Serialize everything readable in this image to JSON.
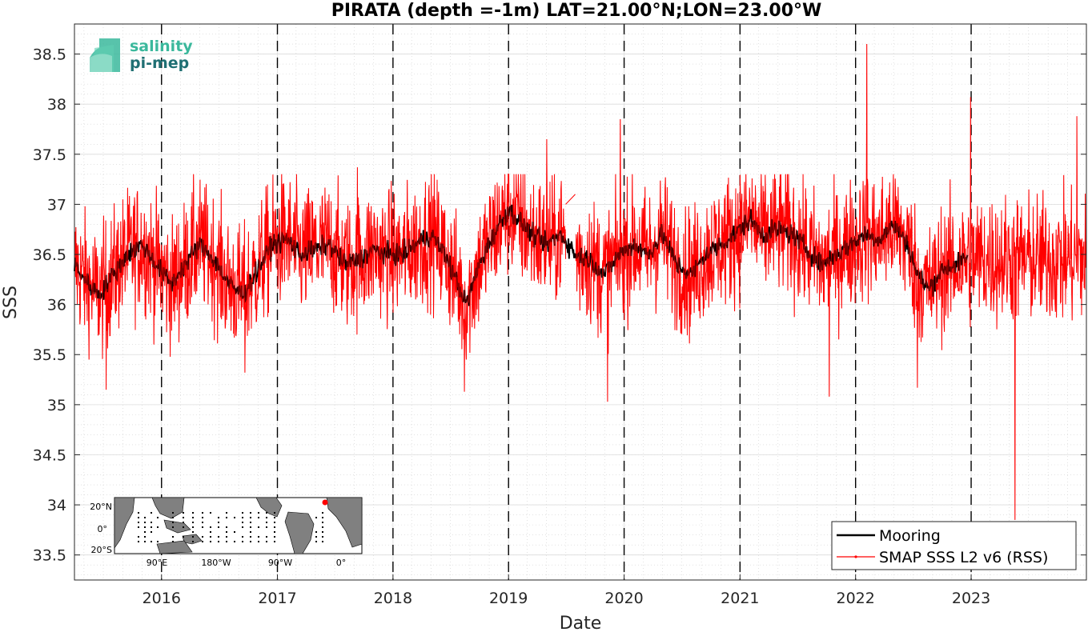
{
  "chart_data": {
    "type": "line",
    "title": "PIRATA (depth =-1m) LAT=21.00°N;LON=23.00°W",
    "xlabel": "Date",
    "ylabel": "SSS",
    "xlim": [
      "2015-04-01",
      "2023-12-31"
    ],
    "ylim": [
      33.25,
      38.8
    ],
    "x_ticks": [
      "2016",
      "2017",
      "2018",
      "2019",
      "2020",
      "2021",
      "2022",
      "2023"
    ],
    "y_ticks": [
      "33.5",
      "34",
      "34.5",
      "35",
      "35.5",
      "36",
      "36.5",
      "37",
      "37.5",
      "38",
      "38.5"
    ],
    "vertical_dashed_lines": [
      "2016-01-01",
      "2017-01-01",
      "2018-01-01",
      "2019-01-01",
      "2020-01-01",
      "2021-01-01",
      "2022-01-01",
      "2023-01-01"
    ],
    "grid": true,
    "legend_position": "bottom-right",
    "series": [
      {
        "name": "Mooring",
        "color": "#000000",
        "points": [
          [
            "2015-04-01",
            36.4
          ],
          [
            "2015-05-15",
            36.2
          ],
          [
            "2015-06-20",
            36.1
          ],
          [
            "2015-08-01",
            36.3
          ],
          [
            "2015-09-15",
            36.5
          ],
          [
            "2015-11-01",
            36.6
          ],
          [
            "2015-12-15",
            36.4
          ],
          [
            "2016-02-01",
            36.2
          ],
          [
            "2016-03-15",
            36.4
          ],
          [
            "2016-05-01",
            36.6
          ],
          [
            "2016-06-15",
            36.45
          ],
          [
            "2016-08-01",
            36.2
          ],
          [
            "2016-09-15",
            36.1
          ],
          [
            "2016-11-01",
            36.35
          ],
          [
            "2016-12-15",
            36.6
          ],
          [
            "2017-02-01",
            36.65
          ],
          [
            "2017-03-15",
            36.5
          ],
          [
            "2017-05-01",
            36.55
          ],
          [
            "2017-06-15",
            36.6
          ],
          [
            "2017-08-01",
            36.4
          ],
          [
            "2017-09-15",
            36.45
          ],
          [
            "2017-11-01",
            36.55
          ],
          [
            "2017-12-15",
            36.5
          ],
          [
            "2018-02-01",
            36.5
          ],
          [
            "2018-03-15",
            36.6
          ],
          [
            "2018-05-01",
            36.7
          ],
          [
            "2018-06-15",
            36.5
          ],
          [
            "2018-08-01",
            36.15
          ],
          [
            "2018-08-20",
            36.0
          ],
          [
            "2018-10-01",
            36.4
          ],
          [
            "2018-11-15",
            36.7
          ],
          [
            "2019-01-01",
            36.95
          ],
          [
            "2019-02-01",
            36.85
          ],
          [
            "2019-03-15",
            36.7
          ],
          [
            "2019-05-01",
            36.6
          ],
          [
            "2019-06-15",
            36.7
          ],
          [
            "2019-08-01",
            36.5
          ],
          [
            "2019-09-15",
            36.45
          ],
          [
            "2019-11-01",
            36.3
          ],
          [
            "2019-12-15",
            36.5
          ],
          [
            "2020-02-01",
            36.6
          ],
          [
            "2020-03-15",
            36.5
          ],
          [
            "2020-05-01",
            36.7
          ],
          [
            "2020-06-15",
            36.4
          ],
          [
            "2020-08-01",
            36.3
          ],
          [
            "2020-09-15",
            36.5
          ],
          [
            "2020-11-01",
            36.6
          ],
          [
            "2020-12-15",
            36.7
          ],
          [
            "2021-02-01",
            36.85
          ],
          [
            "2021-03-15",
            36.7
          ],
          [
            "2021-05-01",
            36.75
          ],
          [
            "2021-06-15",
            36.7
          ],
          [
            "2021-08-01",
            36.55
          ],
          [
            "2021-09-15",
            36.4
          ],
          [
            "2021-11-01",
            36.5
          ],
          [
            "2021-12-15",
            36.6
          ],
          [
            "2022-02-01",
            36.7
          ],
          [
            "2022-03-15",
            36.65
          ],
          [
            "2022-05-01",
            36.8
          ],
          [
            "2022-06-15",
            36.6
          ],
          [
            "2022-07-15",
            36.3
          ],
          [
            "2022-08-20",
            36.15
          ],
          [
            "2022-10-01",
            36.35
          ],
          [
            "2022-11-15",
            36.4
          ],
          [
            "2022-12-15",
            36.45
          ]
        ]
      },
      {
        "name": "SMAP SSS L2 v6 (RSS)",
        "color": "#ff0000",
        "start": "2015-04-01",
        "end": "2023-12-31",
        "gap": [
          "2019-07-01",
          "2019-08-01"
        ],
        "points": [
          [
            "2015-07-10",
            35.15
          ],
          [
            "2016-09-20",
            35.32
          ],
          [
            "2017-09-10",
            37.37
          ],
          [
            "2018-08-15",
            35.13
          ],
          [
            "2019-05-01",
            37.65
          ],
          [
            "2019-11-10",
            35.03
          ],
          [
            "2019-12-20",
            37.85
          ],
          [
            "2021-10-10",
            35.08
          ],
          [
            "2022-02-05",
            38.6
          ],
          [
            "2022-07-15",
            35.17
          ],
          [
            "2022-12-30",
            38.07
          ],
          [
            "2023-05-20",
            33.85
          ],
          [
            "2023-12-01",
            37.88
          ]
        ]
      }
    ]
  },
  "logo": {
    "line1": "salinity",
    "line2": "pi-mep",
    "color1": "#3bb89c",
    "color2": "#1f6f73"
  },
  "inset_map": {
    "lat_labels": [
      "20°N",
      "0°",
      "20°S"
    ],
    "lon_labels": [
      "90°E",
      "180°W",
      "90°W",
      "0°"
    ],
    "ocean_color": "#ffffff",
    "land_color": "#808080",
    "station_color": "#ff0000"
  }
}
